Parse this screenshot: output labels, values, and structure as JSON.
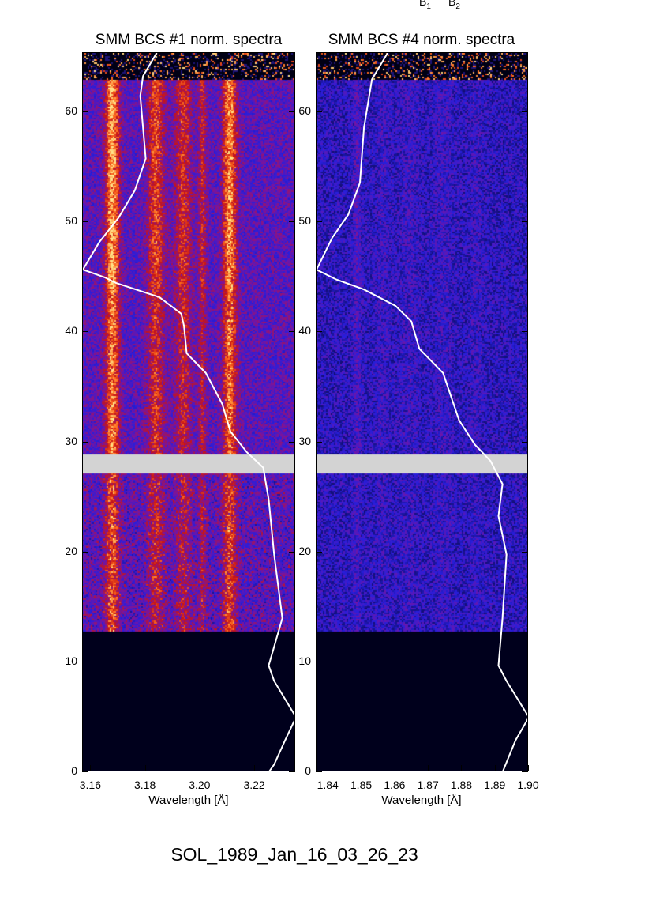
{
  "header_labels": [
    {
      "main": "B",
      "sub": "1"
    },
    {
      "main": "B",
      "sub": "2"
    }
  ],
  "footer_title": "SOL_1989_Jan_16_03_26_23",
  "chart_data": [
    {
      "type": "heatmap",
      "title": "SMM BCS #1 norm. spectra",
      "xlabel": "Wavelength [Å]",
      "ylabel": "",
      "xlim": [
        3.157,
        3.235
      ],
      "ylim": [
        0,
        65.4
      ],
      "xticks": [
        "3.16",
        "3.18",
        "3.20",
        "3.22"
      ],
      "xtick_values": [
        3.16,
        3.18,
        3.2,
        3.22
      ],
      "yticks": [
        0,
        10,
        20,
        30,
        40,
        50,
        60
      ],
      "colormap": "hot-on-blue",
      "data_gap_y": [
        27.2,
        28.9
      ],
      "no_data_below_y": 12.8,
      "overlay_curve": {
        "color": "#ffffff",
        "points": [
          [
            3.184,
            65.4
          ],
          [
            3.179,
            63.3
          ],
          [
            3.178,
            61.5
          ],
          [
            3.179,
            58.6
          ],
          [
            3.18,
            55.8
          ],
          [
            3.176,
            52.9
          ],
          [
            3.17,
            50.4
          ],
          [
            3.163,
            48.2
          ],
          [
            3.157,
            45.7
          ],
          [
            3.165,
            45.0
          ],
          [
            3.169,
            44.5
          ],
          [
            3.185,
            43.2
          ],
          [
            3.193,
            41.7
          ],
          [
            3.194,
            40.6
          ],
          [
            3.195,
            38.1
          ],
          [
            3.202,
            36.3
          ],
          [
            3.208,
            33.5
          ],
          [
            3.211,
            31.0
          ],
          [
            3.217,
            29.1
          ],
          [
            3.223,
            27.7
          ],
          [
            3.225,
            24.8
          ],
          [
            3.227,
            19.8
          ],
          [
            3.23,
            14.0
          ],
          [
            3.225,
            9.7
          ],
          [
            3.227,
            8.3
          ],
          [
            3.235,
            5.0
          ],
          [
            3.231,
            2.9
          ],
          [
            3.227,
            0.7
          ],
          [
            3.225,
            0.0
          ]
        ]
      }
    },
    {
      "type": "heatmap",
      "title": "SMM BCS #4 norm. spectra",
      "xlabel": "Wavelength [Å]",
      "ylabel": "",
      "xlim": [
        1.8364,
        1.9
      ],
      "ylim": [
        0,
        65.4
      ],
      "xticks": [
        "1.84",
        "1.85",
        "1.86",
        "1.87",
        "1.88",
        "1.89",
        "1.90"
      ],
      "xtick_values": [
        1.84,
        1.85,
        1.86,
        1.87,
        1.88,
        1.89,
        1.9
      ],
      "yticks": [
        0,
        10,
        20,
        30,
        40,
        50,
        60
      ],
      "colormap": "hot-on-blue",
      "data_gap_y": [
        27.2,
        28.9
      ],
      "no_data_below_y": 12.8,
      "overlay_curve": {
        "color": "#ffffff",
        "points": [
          [
            1.8577,
            65.4
          ],
          [
            1.853,
            63.0
          ],
          [
            1.8506,
            58.6
          ],
          [
            1.8494,
            53.6
          ],
          [
            1.8459,
            50.7
          ],
          [
            1.8411,
            48.6
          ],
          [
            1.8364,
            45.7
          ],
          [
            1.8423,
            44.8
          ],
          [
            1.8506,
            43.9
          ],
          [
            1.8601,
            42.4
          ],
          [
            1.8648,
            41.0
          ],
          [
            1.8672,
            38.5
          ],
          [
            1.8743,
            36.3
          ],
          [
            1.8791,
            32.0
          ],
          [
            1.8838,
            29.8
          ],
          [
            1.8885,
            28.3
          ],
          [
            1.8921,
            26.2
          ],
          [
            1.8909,
            23.3
          ],
          [
            1.8933,
            19.8
          ],
          [
            1.8921,
            14.0
          ],
          [
            1.8909,
            9.7
          ],
          [
            1.8933,
            8.3
          ],
          [
            1.9,
            5.0
          ],
          [
            1.896,
            2.9
          ],
          [
            1.8921,
            0.0
          ]
        ]
      }
    }
  ]
}
